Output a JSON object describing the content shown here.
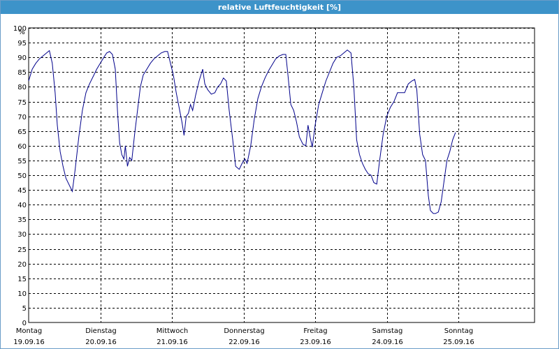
{
  "window": {
    "title": "relative Luftfeuchtigkeit [%]"
  },
  "chart_data": {
    "type": "line",
    "title": "relative Luftfeuchtigkeit [%]",
    "ylabel": "%",
    "xlabel": "",
    "ylim": [
      0,
      100
    ],
    "yticks": [
      0,
      5,
      10,
      15,
      20,
      25,
      30,
      35,
      40,
      45,
      50,
      55,
      60,
      65,
      70,
      75,
      80,
      85,
      90,
      95,
      100
    ],
    "xlim": [
      0,
      7
    ],
    "grid": true,
    "legend": "none",
    "line_color": "#00008b",
    "x_ticks": [
      {
        "x": 0,
        "day": "Montag",
        "date": "19.09.16"
      },
      {
        "x": 1,
        "day": "Dienstag",
        "date": "20.09.16"
      },
      {
        "x": 2,
        "day": "Mittwoch",
        "date": "21.09.16"
      },
      {
        "x": 3,
        "day": "Donnerstag",
        "date": "22.09.16"
      },
      {
        "x": 4,
        "day": "Freitag",
        "date": "23.09.16"
      },
      {
        "x": 5,
        "day": "Samstag",
        "date": "24.09.16"
      },
      {
        "x": 6,
        "day": "Sonntag",
        "date": "25.09.16"
      }
    ],
    "series": [
      {
        "values": [
          [
            0.0,
            82
          ],
          [
            0.05,
            86
          ],
          [
            0.1,
            88
          ],
          [
            0.15,
            89.5
          ],
          [
            0.2,
            90.5
          ],
          [
            0.25,
            91.5
          ],
          [
            0.29,
            92.3
          ],
          [
            0.33,
            88
          ],
          [
            0.37,
            78
          ],
          [
            0.4,
            67
          ],
          [
            0.44,
            58
          ],
          [
            0.48,
            53
          ],
          [
            0.52,
            49
          ],
          [
            0.56,
            47
          ],
          [
            0.59,
            45.5
          ],
          [
            0.61,
            44.5
          ],
          [
            0.65,
            52
          ],
          [
            0.7,
            63
          ],
          [
            0.75,
            72
          ],
          [
            0.8,
            78
          ],
          [
            0.85,
            81
          ],
          [
            0.9,
            83.5
          ],
          [
            0.95,
            86
          ],
          [
            1.0,
            88
          ],
          [
            1.05,
            90
          ],
          [
            1.09,
            91.5
          ],
          [
            1.13,
            92
          ],
          [
            1.17,
            91
          ],
          [
            1.21,
            86
          ],
          [
            1.24,
            72
          ],
          [
            1.27,
            61
          ],
          [
            1.3,
            57
          ],
          [
            1.33,
            55.5
          ],
          [
            1.35,
            60
          ],
          [
            1.38,
            53
          ],
          [
            1.41,
            56
          ],
          [
            1.44,
            55
          ],
          [
            1.48,
            64
          ],
          [
            1.52,
            72
          ],
          [
            1.56,
            80
          ],
          [
            1.6,
            84
          ],
          [
            1.65,
            86
          ],
          [
            1.7,
            88
          ],
          [
            1.75,
            89.5
          ],
          [
            1.8,
            90.5
          ],
          [
            1.85,
            91.5
          ],
          [
            1.9,
            92
          ],
          [
            1.94,
            92
          ],
          [
            1.97,
            89
          ],
          [
            2.02,
            84
          ],
          [
            2.06,
            78
          ],
          [
            2.1,
            73
          ],
          [
            2.14,
            68
          ],
          [
            2.17,
            63.5
          ],
          [
            2.2,
            70
          ],
          [
            2.23,
            71
          ],
          [
            2.26,
            74
          ],
          [
            2.29,
            72
          ],
          [
            2.33,
            77
          ],
          [
            2.38,
            82
          ],
          [
            2.43,
            86
          ],
          [
            2.46,
            81
          ],
          [
            2.5,
            79
          ],
          [
            2.55,
            77.5
          ],
          [
            2.6,
            78
          ],
          [
            2.64,
            80
          ],
          [
            2.68,
            81
          ],
          [
            2.72,
            83
          ],
          [
            2.76,
            82
          ],
          [
            2.8,
            72
          ],
          [
            2.85,
            62
          ],
          [
            2.89,
            53
          ],
          [
            2.94,
            52
          ],
          [
            2.98,
            54
          ],
          [
            3.02,
            55.5
          ],
          [
            3.05,
            54
          ],
          [
            3.1,
            60
          ],
          [
            3.15,
            69
          ],
          [
            3.2,
            76
          ],
          [
            3.25,
            80
          ],
          [
            3.3,
            83
          ],
          [
            3.35,
            85.5
          ],
          [
            3.4,
            87.5
          ],
          [
            3.45,
            89.5
          ],
          [
            3.5,
            90.5
          ],
          [
            3.55,
            91
          ],
          [
            3.59,
            91
          ],
          [
            3.62,
            84
          ],
          [
            3.66,
            74
          ],
          [
            3.7,
            72
          ],
          [
            3.74,
            68
          ],
          [
            3.78,
            63
          ],
          [
            3.83,
            60.5
          ],
          [
            3.87,
            60
          ],
          [
            3.9,
            67
          ],
          [
            3.93,
            63
          ],
          [
            3.96,
            59.5
          ],
          [
            4.0,
            67
          ],
          [
            4.05,
            74
          ],
          [
            4.1,
            78
          ],
          [
            4.15,
            82
          ],
          [
            4.2,
            85
          ],
          [
            4.25,
            88
          ],
          [
            4.3,
            90
          ],
          [
            4.35,
            90.5
          ],
          [
            4.4,
            91.5
          ],
          [
            4.45,
            92.5
          ],
          [
            4.5,
            91.5
          ],
          [
            4.54,
            80
          ],
          [
            4.58,
            62
          ],
          [
            4.62,
            57
          ],
          [
            4.66,
            54
          ],
          [
            4.7,
            52
          ],
          [
            4.74,
            50.5
          ],
          [
            4.78,
            50
          ],
          [
            4.82,
            47.5
          ],
          [
            4.86,
            47
          ],
          [
            4.9,
            55
          ],
          [
            4.95,
            64
          ],
          [
            5.0,
            70
          ],
          [
            5.05,
            73
          ],
          [
            5.1,
            75
          ],
          [
            5.15,
            78
          ],
          [
            5.2,
            78
          ],
          [
            5.25,
            78
          ],
          [
            5.3,
            81
          ],
          [
            5.35,
            82
          ],
          [
            5.39,
            82.5
          ],
          [
            5.42,
            79
          ],
          [
            5.46,
            64
          ],
          [
            5.5,
            57
          ],
          [
            5.54,
            55
          ],
          [
            5.58,
            43
          ],
          [
            5.61,
            38
          ],
          [
            5.65,
            37
          ],
          [
            5.68,
            37
          ],
          [
            5.72,
            37.5
          ],
          [
            5.76,
            41
          ],
          [
            5.8,
            48
          ],
          [
            5.84,
            55
          ],
          [
            5.88,
            58
          ],
          [
            5.92,
            62
          ],
          [
            5.96,
            64.5
          ]
        ]
      }
    ]
  }
}
